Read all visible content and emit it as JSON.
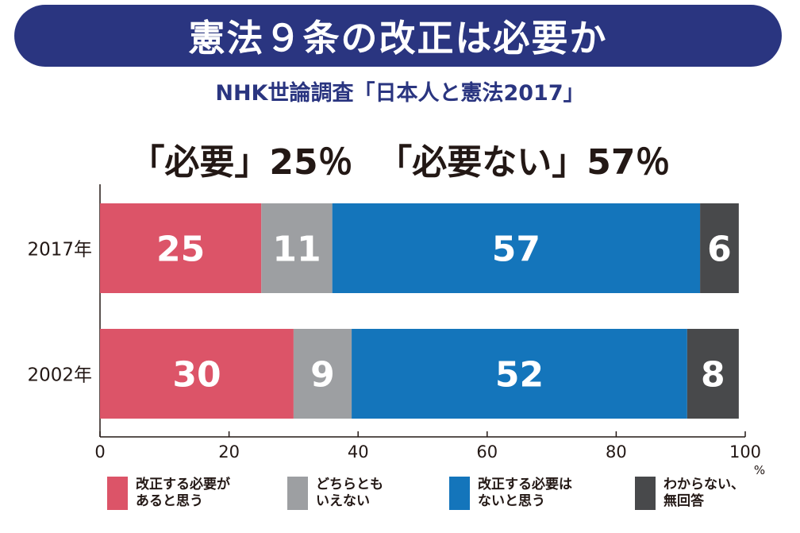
{
  "title": "憲法９条の改正は必要か",
  "subtitle": "NHK世論調査「日本人と憲法2017」",
  "headline": "「必要」25％  「必要ない」57％",
  "colors": {
    "banner": "#2a3580",
    "need": "#dc5468",
    "neither": "#9d9fa2",
    "not_need": "#1475bb",
    "no_answer": "#48494b"
  },
  "chart_data": {
    "type": "bar",
    "orientation": "horizontal",
    "stacked": true,
    "categories": [
      "2017年",
      "2002年"
    ],
    "series": [
      {
        "name": "改正する必要が\nあると思う",
        "values": [
          25,
          30
        ],
        "color": "#dc5468"
      },
      {
        "name": "どちらとも\nいえない",
        "values": [
          11,
          9
        ],
        "color": "#9d9fa2"
      },
      {
        "name": "改正する必要は\nないと思う",
        "values": [
          57,
          52
        ],
        "color": "#1475bb"
      },
      {
        "name": "わからない、\n無回答",
        "values": [
          6,
          8
        ],
        "color": "#48494b"
      }
    ],
    "xlim": [
      0,
      100
    ],
    "xticks": [
      "0",
      "20",
      "40",
      "60",
      "80",
      "100"
    ],
    "xunit": "%",
    "legend_position": "bottom",
    "grid": false
  }
}
